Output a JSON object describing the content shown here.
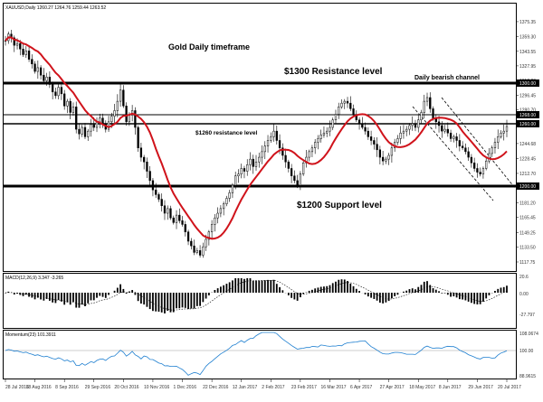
{
  "window": {
    "symbol_info": "XAUUSD,Daily  1260.27 1264.76 1259.44 1263.52"
  },
  "annotations": {
    "title": "Gold Daily timeframe",
    "resistance_1300": "$1300 Resistance level",
    "channel": "Daily bearish channel",
    "resistance_1260": "$1260 resistance level",
    "support_1200": "$1200 Support level"
  },
  "price_tags": {
    "r1300": "1300.00",
    "r1268": "1268.00",
    "r1260": "1260.00",
    "s1200": "1200.00"
  },
  "macd_panel": {
    "title": "MACD(12,26,9) 3.347 -3.265",
    "ticks": [
      "20.6",
      "0.00",
      "-27.797"
    ]
  },
  "momentum_panel": {
    "title": "Momentum(23) 101.3911",
    "ticks": [
      "108.0674",
      "100.00",
      "88.9615"
    ]
  },
  "colors": {
    "candle": "#000000",
    "ma": "#d0131b",
    "momentum": "#1e7fd0",
    "level": "#000000"
  },
  "chart_data": {
    "type": "candlestick",
    "title": "Gold Daily timeframe",
    "symbol": "XAUUSD,Daily",
    "ylim": [
      1110,
      1385
    ],
    "y_ticks": [
      1375.35,
      1359.3,
      1343.55,
      1327.95,
      1312.2,
      1296.45,
      1280.7,
      1264.95,
      1244.68,
      1228.45,
      1212.7,
      1196.95,
      1181.2,
      1165.45,
      1149.25,
      1133.5,
      1117.75
    ],
    "x_ticks": [
      "28 Jul 2016",
      "18 Aug 2016",
      "8 Sep 2016",
      "29 Sep 2016",
      "20 Oct 2016",
      "10 Nov 2016",
      "1 Dec 2016",
      "22 Dec 2016",
      "12 Jan 2017",
      "2 Feb 2017",
      "23 Feb 2017",
      "16 Mar 2017",
      "6 Apr 2017",
      "27 Apr 2017",
      "18 May 2017",
      "8 Jun 2017",
      "29 Jun 2017",
      "20 Jul 2017"
    ],
    "levels": [
      1300,
      1268,
      1260,
      1200
    ],
    "close": [
      1355,
      1362,
      1358,
      1350,
      1352,
      1346,
      1340,
      1344,
      1335,
      1330,
      1322,
      1326,
      1318,
      1312,
      1316,
      1308,
      1300,
      1296,
      1305,
      1298,
      1285,
      1290,
      1278,
      1284,
      1260,
      1255,
      1262,
      1252,
      1258,
      1265,
      1262,
      1268,
      1272,
      1266,
      1260,
      1268,
      1274,
      1280,
      1290,
      1302,
      1285,
      1268,
      1275,
      1280,
      1262,
      1240,
      1230,
      1225,
      1215,
      1205,
      1195,
      1190,
      1185,
      1178,
      1170,
      1175,
      1165,
      1160,
      1168,
      1162,
      1158,
      1150,
      1140,
      1135,
      1128,
      1130,
      1125,
      1134,
      1142,
      1150,
      1158,
      1165,
      1170,
      1175,
      1180,
      1186,
      1192,
      1200,
      1210,
      1212,
      1218,
      1215,
      1222,
      1228,
      1220,
      1225,
      1230,
      1236,
      1242,
      1248,
      1252,
      1258,
      1248,
      1240,
      1232,
      1225,
      1218,
      1210,
      1205,
      1200,
      1212,
      1224,
      1230,
      1236,
      1240,
      1246,
      1250,
      1254,
      1256,
      1258,
      1262,
      1270,
      1276,
      1284,
      1288,
      1290,
      1288,
      1282,
      1276,
      1270,
      1266,
      1262,
      1258,
      1252,
      1248,
      1244,
      1238,
      1230,
      1226,
      1228,
      1232,
      1240,
      1246,
      1250,
      1256,
      1258,
      1260,
      1264,
      1266,
      1262,
      1270,
      1278,
      1290,
      1294,
      1282,
      1272,
      1268,
      1264,
      1258,
      1260,
      1256,
      1250,
      1252,
      1248,
      1242,
      1240,
      1236,
      1230,
      1224,
      1218,
      1214,
      1212,
      1218,
      1226,
      1234,
      1240,
      1246,
      1252,
      1256,
      1258,
      1263
    ]
  }
}
